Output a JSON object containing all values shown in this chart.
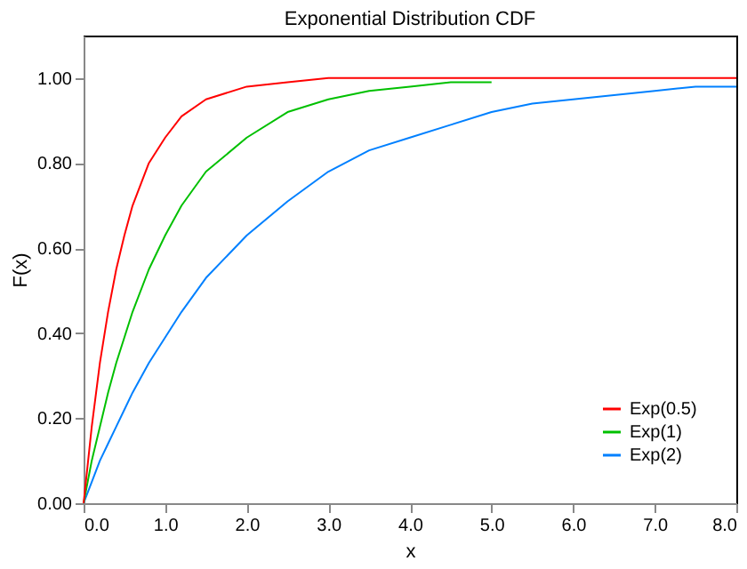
{
  "chart_data": {
    "type": "line",
    "title": "Exponential Distribution CDF",
    "xlabel": "x",
    "ylabel": "F(x)",
    "x": [
      0,
      0.1,
      0.2,
      0.3,
      0.4,
      0.5,
      0.6,
      0.8,
      1.0,
      1.2,
      1.5,
      2,
      2.5,
      3,
      3.5,
      4,
      4.5,
      5,
      5.5,
      6,
      6.5,
      7,
      7.5,
      8
    ],
    "series": [
      {
        "name": "Exp(0.5)",
        "color": "#ff0000",
        "values": [
          0,
          0.18,
          0.33,
          0.45,
          0.55,
          0.63,
          0.7,
          0.8,
          0.86,
          0.91,
          0.95,
          0.98,
          0.99,
          1.0,
          1.0,
          1.0,
          1.0,
          1.0,
          1.0,
          1.0,
          1.0,
          1.0,
          1.0,
          1.0
        ]
      },
      {
        "name": "Exp(1)",
        "color": "#00c000",
        "values": [
          0,
          0.1,
          0.18,
          0.26,
          0.33,
          0.39,
          0.45,
          0.55,
          0.63,
          0.7,
          0.78,
          0.86,
          0.92,
          0.95,
          0.97,
          0.98,
          0.99,
          0.99,
          null,
          null,
          null,
          null,
          null,
          null
        ]
      },
      {
        "name": "Exp(2)",
        "color": "#0080ff",
        "values": [
          0,
          0.05,
          0.1,
          0.14,
          0.18,
          0.22,
          0.26,
          0.33,
          0.39,
          0.45,
          0.53,
          0.63,
          0.71,
          0.78,
          0.83,
          0.86,
          0.89,
          0.92,
          0.94,
          0.95,
          0.96,
          0.97,
          0.98,
          0.98
        ]
      }
    ],
    "xlim": [
      0,
      8
    ],
    "xticks": [
      {
        "value": 0,
        "label": "0.0"
      },
      {
        "value": 1,
        "label": "1.0"
      },
      {
        "value": 2,
        "label": "2.0"
      },
      {
        "value": 3,
        "label": "3.0"
      },
      {
        "value": 4,
        "label": "4.0"
      },
      {
        "value": 5,
        "label": "5.0"
      },
      {
        "value": 6,
        "label": "6.0"
      },
      {
        "value": 7,
        "label": "7.0"
      },
      {
        "value": 8,
        "label": "8.0"
      }
    ],
    "ylim": [
      0,
      1.1
    ],
    "yticks": [
      {
        "value": 0,
        "label": "0.00"
      },
      {
        "value": 0.2,
        "label": "0.20"
      },
      {
        "value": 0.4,
        "label": "0.40"
      },
      {
        "value": 0.6,
        "label": "0.60"
      },
      {
        "value": 0.8,
        "label": "0.80"
      },
      {
        "value": 1.0,
        "label": "1.00"
      }
    ],
    "grid": false,
    "legend": "bottom right",
    "line_style": "solid"
  }
}
